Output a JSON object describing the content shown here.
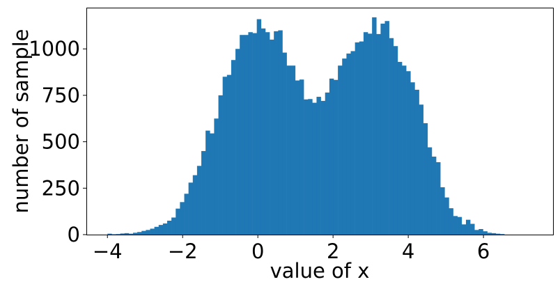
{
  "chart_data": {
    "type": "bar",
    "title": "",
    "xlabel": "value of x",
    "ylabel": "number of sample",
    "xlim": [
      -4.56,
      7.85
    ],
    "ylim": [
      0,
      1222
    ],
    "x_ticks": [
      -4,
      -2,
      0,
      2,
      4,
      6
    ],
    "x_tick_labels": [
      "−4",
      "−2",
      "0",
      "2",
      "4",
      "6"
    ],
    "y_ticks": [
      0,
      250,
      500,
      750,
      1000
    ],
    "y_tick_labels": [
      "0",
      "250",
      "500",
      "750",
      "1000"
    ],
    "grid": false,
    "legend": "none",
    "bar_color": "#1f77b4",
    "bin_width": 0.1135,
    "bin_left_edges": [
      -4.0,
      -3.887,
      -3.773,
      -3.66,
      -3.546,
      -3.433,
      -3.319,
      -3.206,
      -3.092,
      -2.979,
      -2.865,
      -2.752,
      -2.638,
      -2.525,
      -2.411,
      -2.298,
      -2.184,
      -2.071,
      -1.957,
      -1.844,
      -1.73,
      -1.617,
      -1.503,
      -1.39,
      -1.276,
      -1.163,
      -1.049,
      -0.936,
      -0.822,
      -0.709,
      -0.595,
      -0.482,
      -0.368,
      -0.255,
      -0.141,
      -0.028,
      0.086,
      0.199,
      0.313,
      0.426,
      0.54,
      0.653,
      0.767,
      0.88,
      0.994,
      1.107,
      1.221,
      1.334,
      1.448,
      1.561,
      1.675,
      1.788,
      1.902,
      2.015,
      2.129,
      2.242,
      2.356,
      2.469,
      2.583,
      2.696,
      2.81,
      2.923,
      3.037,
      3.15,
      3.264,
      3.377,
      3.491,
      3.604,
      3.718,
      3.831,
      3.945,
      4.058,
      4.172,
      4.285,
      4.399,
      4.512,
      4.626,
      4.739,
      4.853,
      4.966,
      5.08,
      5.193,
      5.307,
      5.42,
      5.534,
      5.647,
      5.761,
      5.874,
      5.988,
      6.101,
      6.215,
      6.328,
      6.442
    ],
    "values": [
      5,
      2,
      3,
      6,
      8,
      5,
      10,
      14,
      20,
      25,
      32,
      42,
      52,
      60,
      75,
      92,
      140,
      175,
      220,
      280,
      320,
      370,
      450,
      560,
      545,
      625,
      750,
      850,
      860,
      940,
      1000,
      1075,
      1075,
      1090,
      1085,
      1160,
      1110,
      1090,
      1050,
      1095,
      1100,
      980,
      910,
      910,
      830,
      835,
      728,
      730,
      710,
      742,
      720,
      765,
      840,
      833,
      910,
      948,
      975,
      988,
      1035,
      1040,
      1090,
      1082,
      1170,
      1080,
      1136,
      1150,
      1058,
      1015,
      930,
      910,
      880,
      820,
      780,
      700,
      600,
      470,
      420,
      390,
      255,
      200,
      142,
      100,
      95,
      55,
      80,
      58,
      25,
      30,
      18,
      10,
      8,
      5,
      3
    ]
  }
}
